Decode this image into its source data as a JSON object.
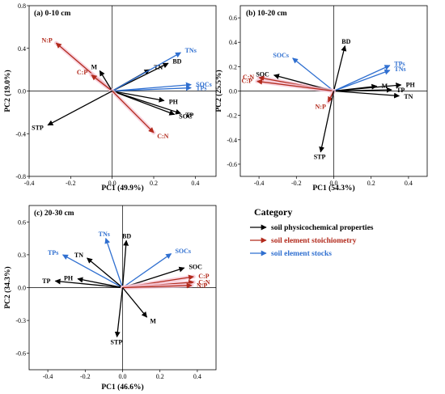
{
  "legend": {
    "title": "Category",
    "items": [
      {
        "label": "soil physicochemical properties",
        "color": "#000000"
      },
      {
        "label": "soil element stoichiometry",
        "color": "#b22a1c"
      },
      {
        "label": "soil element stocks",
        "color": "#2f6fd0"
      }
    ]
  },
  "colors": {
    "physicochemical": "#000000",
    "stoichiometry": "#b22a1c",
    "stocks": "#2f6fd0",
    "highlight": "#f6c6d6"
  },
  "chart_data": [
    {
      "type": "biplot",
      "title": "(a) 0-10 cm",
      "xlabel": "PC1 (49.9%)",
      "ylabel": "PC2 (19.0%)",
      "xlim": [
        -0.4,
        0.5
      ],
      "ylim": [
        -0.8,
        0.8
      ],
      "xticks": [
        -0.4,
        -0.2,
        0.0,
        0.2,
        0.4
      ],
      "yticks": [
        -0.8,
        -0.4,
        0.0,
        0.4,
        0.8
      ],
      "tick_labels_x": [
        "-0.4",
        "-0.2",
        "0.0",
        "0.2",
        "0.4"
      ],
      "tick_labels_y": [
        "-0.8",
        "-0.4",
        "0.0",
        "0.4",
        "0.8"
      ],
      "vectors": [
        {
          "name": "N:P",
          "x": -0.27,
          "y": 0.45,
          "group": "stoichiometry"
        },
        {
          "name": "C:P",
          "x": -0.1,
          "y": 0.15,
          "group": "stoichiometry"
        },
        {
          "name": "M",
          "x": -0.06,
          "y": 0.19,
          "group": "physicochemical"
        },
        {
          "name": "TN",
          "x": 0.18,
          "y": 0.2,
          "group": "physicochemical"
        },
        {
          "name": "BD",
          "x": 0.27,
          "y": 0.26,
          "group": "physicochemical"
        },
        {
          "name": "TNs",
          "x": 0.33,
          "y": 0.36,
          "group": "stocks"
        },
        {
          "name": "SOCs",
          "x": 0.38,
          "y": 0.06,
          "group": "stocks"
        },
        {
          "name": "TPs",
          "x": 0.38,
          "y": 0.03,
          "group": "stocks"
        },
        {
          "name": "PH",
          "x": 0.25,
          "y": -0.09,
          "group": "physicochemical"
        },
        {
          "name": "TP",
          "x": 0.33,
          "y": -0.21,
          "group": "physicochemical"
        },
        {
          "name": "SOC",
          "x": 0.3,
          "y": -0.22,
          "group": "physicochemical"
        },
        {
          "name": "C:N",
          "x": 0.2,
          "y": -0.39,
          "group": "stoichiometry"
        },
        {
          "name": "STP",
          "x": -0.31,
          "y": -0.32,
          "group": "physicochemical"
        }
      ]
    },
    {
      "type": "biplot",
      "title": "(b) 10-20 cm",
      "xlabel": "PC1 (54.3%)",
      "ylabel": "PC2 (25.5%)",
      "xlim": [
        -0.5,
        0.5
      ],
      "ylim": [
        -0.7,
        0.7
      ],
      "xticks": [
        -0.4,
        -0.2,
        0.0,
        0.2,
        0.4
      ],
      "yticks": [
        -0.6,
        -0.4,
        -0.2,
        0.0,
        0.2,
        0.4,
        0.6
      ],
      "tick_labels_x": [
        "-0.4",
        "-0.2",
        "0.0",
        "0.2",
        "0.4"
      ],
      "tick_labels_y": [
        "-0.6",
        "-0.4",
        "-0.2",
        "0.0",
        "0.2",
        "0.4",
        "0.6"
      ],
      "vectors": [
        {
          "name": "SOCs",
          "x": -0.22,
          "y": 0.27,
          "group": "stocks"
        },
        {
          "name": "BD",
          "x": 0.06,
          "y": 0.37,
          "group": "physicochemical"
        },
        {
          "name": "C:N",
          "x": -0.4,
          "y": 0.11,
          "group": "stoichiometry"
        },
        {
          "name": "SOC",
          "x": -0.32,
          "y": 0.13,
          "group": "physicochemical"
        },
        {
          "name": "C:P",
          "x": -0.41,
          "y": 0.08,
          "group": "stoichiometry"
        },
        {
          "name": "TPs",
          "x": 0.3,
          "y": 0.21,
          "group": "stocks"
        },
        {
          "name": "TNs",
          "x": 0.3,
          "y": 0.17,
          "group": "stocks"
        },
        {
          "name": "M",
          "x": 0.23,
          "y": 0.04,
          "group": "physicochemical"
        },
        {
          "name": "PH",
          "x": 0.36,
          "y": 0.05,
          "group": "physicochemical"
        },
        {
          "name": "TP",
          "x": 0.31,
          "y": 0.01,
          "group": "physicochemical"
        },
        {
          "name": "TN",
          "x": 0.35,
          "y": -0.04,
          "group": "physicochemical"
        },
        {
          "name": "N:P",
          "x": -0.03,
          "y": -0.09,
          "group": "stoichiometry"
        },
        {
          "name": "STP",
          "x": -0.07,
          "y": -0.5,
          "group": "physicochemical"
        }
      ]
    },
    {
      "type": "biplot",
      "title": "(c) 20-30 cm",
      "xlabel": "PC1 (46.6%)",
      "ylabel": "PC2 (34.3%)",
      "xlim": [
        -0.5,
        0.5
      ],
      "ylim": [
        -0.75,
        0.75
      ],
      "xticks": [
        -0.4,
        -0.2,
        0.0,
        0.2,
        0.4
      ],
      "yticks": [
        -0.6,
        -0.3,
        0.0,
        0.3,
        0.6
      ],
      "tick_labels_x": [
        "-0.4",
        "-0.2",
        "0.0",
        "0.2",
        "0.4"
      ],
      "tick_labels_y": [
        "-0.6",
        "-0.3",
        "0.0",
        "0.3",
        "0.6"
      ],
      "vectors": [
        {
          "name": "TNs",
          "x": -0.09,
          "y": 0.45,
          "group": "stocks"
        },
        {
          "name": "BD",
          "x": 0.02,
          "y": 0.43,
          "group": "physicochemical"
        },
        {
          "name": "TPs",
          "x": -0.32,
          "y": 0.3,
          "group": "stocks"
        },
        {
          "name": "TN",
          "x": -0.19,
          "y": 0.27,
          "group": "physicochemical"
        },
        {
          "name": "SOCs",
          "x": 0.26,
          "y": 0.31,
          "group": "stocks"
        },
        {
          "name": "SOC",
          "x": 0.33,
          "y": 0.18,
          "group": "physicochemical"
        },
        {
          "name": "PH",
          "x": -0.24,
          "y": 0.08,
          "group": "physicochemical"
        },
        {
          "name": "TP",
          "x": -0.36,
          "y": 0.06,
          "group": "physicochemical"
        },
        {
          "name": "C:P",
          "x": 0.38,
          "y": 0.1,
          "group": "stoichiometry"
        },
        {
          "name": "C:N",
          "x": 0.38,
          "y": 0.05,
          "group": "stoichiometry"
        },
        {
          "name": "N:P",
          "x": 0.37,
          "y": 0.02,
          "group": "stoichiometry"
        },
        {
          "name": "M",
          "x": 0.13,
          "y": -0.27,
          "group": "physicochemical"
        },
        {
          "name": "STP",
          "x": -0.03,
          "y": -0.45,
          "group": "physicochemical"
        }
      ]
    }
  ]
}
